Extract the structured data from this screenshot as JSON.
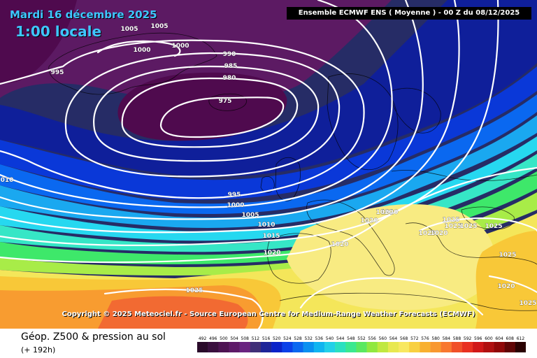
{
  "header": {
    "date": "Mardi 16 décembre 2025",
    "time": "1:00 locale",
    "model": "Ensemble ECMWF ENS  ( Moyenne )  -  00 Z du 08/12/2025"
  },
  "copyright": "Copyright © 2025 Meteociel.fr - Source European Centre for Medium-Range Weather Forecasts (ECMWF)",
  "footer": {
    "parameter": "Géop. Z500 & pression au sol",
    "lead_time": "(+ 192h)"
  },
  "isobar_labels": [
    "1005",
    "1005",
    "1000",
    "1000",
    "995",
    "990",
    "985",
    "980",
    "975",
    "010",
    "995",
    "1000",
    "1005",
    "1010",
    "1015",
    "1020",
    "1020",
    "1020",
    "1020",
    "1020",
    "1025",
    "1025",
    "1025",
    "1025",
    "1025",
    "1025",
    "1020",
    "1020",
    "1020",
    "1025"
  ],
  "legend": {
    "values": [
      "492",
      "496",
      "500",
      "504",
      "508",
      "512",
      "516",
      "520",
      "524",
      "528",
      "532",
      "536",
      "540",
      "544",
      "548",
      "552",
      "556",
      "560",
      "564",
      "568",
      "572",
      "576",
      "580",
      "584",
      "588",
      "592",
      "596",
      "600",
      "604",
      "608",
      "612"
    ],
    "colors": [
      "#2a0a2a",
      "#3a0f3e",
      "#4d1352",
      "#5e1a68",
      "#6a2480",
      "#402f78",
      "#1d2498",
      "#0a22c8",
      "#0a40e8",
      "#0a68f0",
      "#0a90f0",
      "#10b4f0",
      "#22d0e8",
      "#2ae0c0",
      "#3ae890",
      "#5ae860",
      "#90e840",
      "#c0e840",
      "#e8e850",
      "#f8e860",
      "#f8d040",
      "#f8b030",
      "#f89830",
      "#f87830",
      "#f05028",
      "#e83020",
      "#d01818",
      "#b01010",
      "#900808",
      "#600505",
      "#2a0202"
    ]
  },
  "map_colors": {
    "purple_dark": "#4f0a4e",
    "purple": "#5c1a63",
    "navy": "#262c66",
    "deep_blue": "#0f1f9a",
    "blue": "#0a38d8",
    "mid_blue": "#0a68f0",
    "light_blue": "#1aa8f0",
    "cyan": "#26d8f0",
    "aqua": "#36e6c6",
    "green": "#3ee86a",
    "lime": "#a8ec48",
    "yellow": "#f4e65a",
    "light_yellow": "#f8eb82",
    "gold": "#f8c838",
    "orange": "#f89c30",
    "red_orange": "#f26a32"
  }
}
